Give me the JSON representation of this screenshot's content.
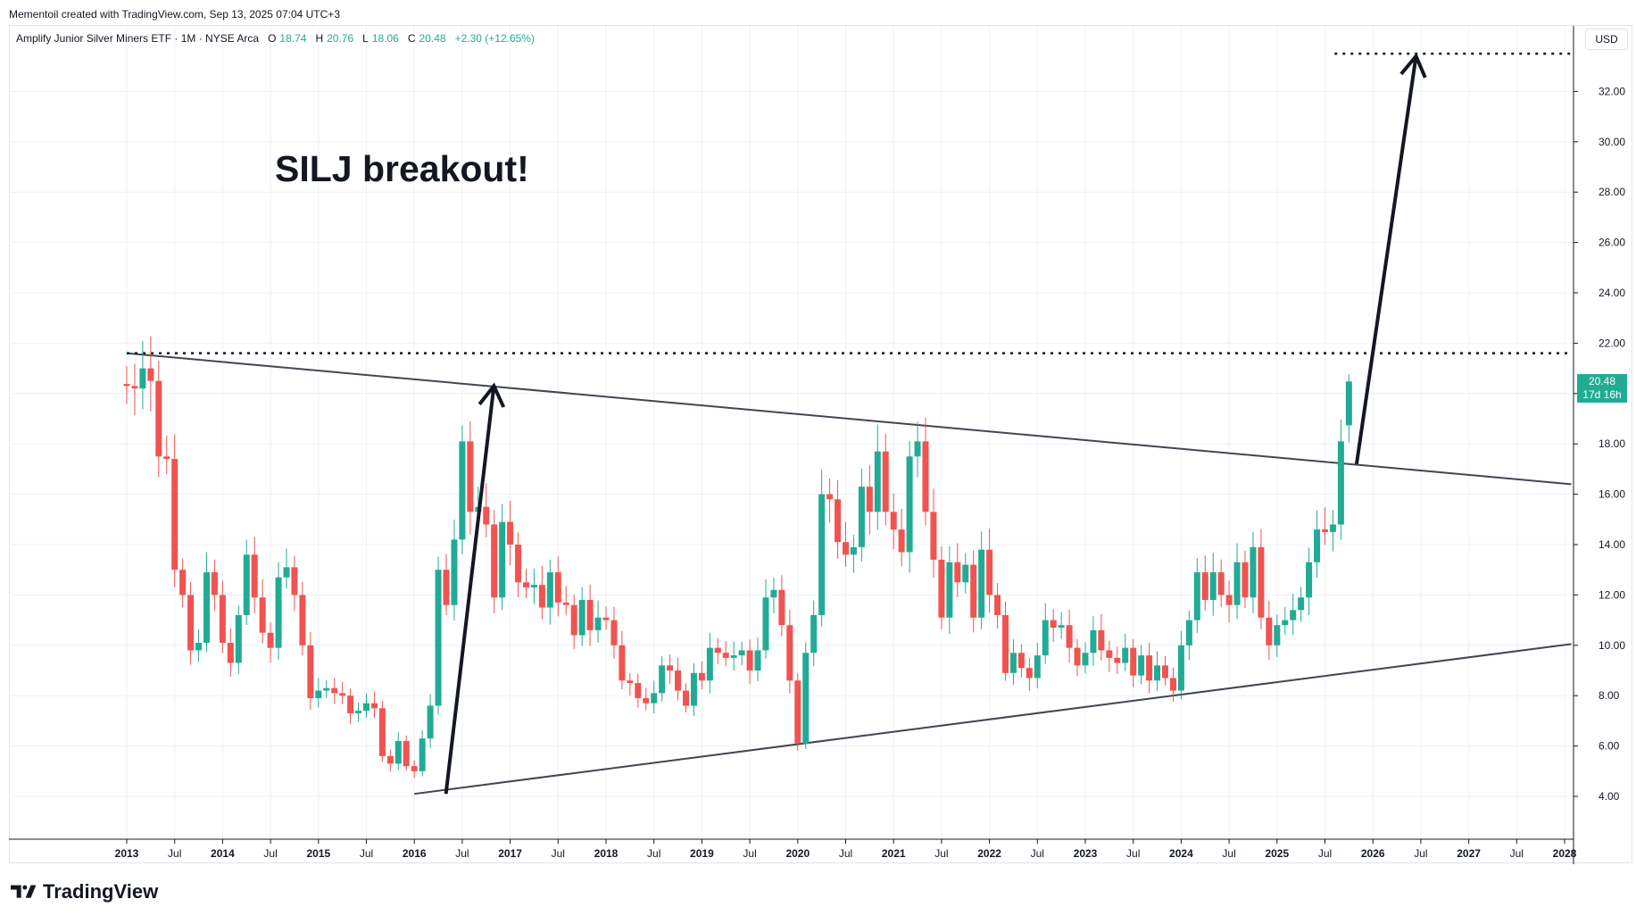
{
  "header": {
    "created_by": "Mementoil created with TradingView.com, Sep 13, 2025 07:04 UTC+3"
  },
  "legend": {
    "symbol": "Amplify Junior Silver Miners ETF · 1M · NYSE Arca",
    "open_label": "O",
    "open": "18.74",
    "high_label": "H",
    "high": "20.76",
    "low_label": "L",
    "low": "18.06",
    "close_label": "C",
    "close": "20.48",
    "change": "+2.30 (+12.65%)"
  },
  "currency": "USD",
  "annotation": "SILJ breakout!",
  "last_price": {
    "value": "20.48",
    "countdown": "17d 16h"
  },
  "brand": {
    "name": "TradingView"
  },
  "colors": {
    "up": "#22ab94",
    "down": "#f05350",
    "grid": "#eef1f6",
    "line": "#131722"
  },
  "chart_data": {
    "type": "candlestick",
    "interval": "1M",
    "ylim": [
      2.2,
      35.0
    ],
    "y_ticks": [
      "4.00",
      "6.00",
      "8.00",
      "10.00",
      "12.00",
      "14.00",
      "16.00",
      "18.00",
      "20.00",
      "22.00",
      "24.00",
      "26.00",
      "28.00",
      "30.00",
      "32.00"
    ],
    "x_ticks": [
      {
        "label": "2013",
        "t": 2013.0,
        "year": true
      },
      {
        "label": "Jul",
        "t": 2013.5
      },
      {
        "label": "2014",
        "t": 2014.0,
        "year": true
      },
      {
        "label": "Jul",
        "t": 2014.5
      },
      {
        "label": "2015",
        "t": 2015.0,
        "year": true
      },
      {
        "label": "Jul",
        "t": 2015.5
      },
      {
        "label": "2016",
        "t": 2016.0,
        "year": true
      },
      {
        "label": "Jul",
        "t": 2016.5
      },
      {
        "label": "2017",
        "t": 2017.0,
        "year": true
      },
      {
        "label": "Jul",
        "t": 2017.5
      },
      {
        "label": "2018",
        "t": 2018.0,
        "year": true
      },
      {
        "label": "Jul",
        "t": 2018.5
      },
      {
        "label": "2019",
        "t": 2019.0,
        "year": true
      },
      {
        "label": "Jul",
        "t": 2019.5
      },
      {
        "label": "2020",
        "t": 2020.0,
        "year": true
      },
      {
        "label": "Jul",
        "t": 2020.5
      },
      {
        "label": "2021",
        "t": 2021.0,
        "year": true
      },
      {
        "label": "Jul",
        "t": 2021.5
      },
      {
        "label": "2022",
        "t": 2022.0,
        "year": true
      },
      {
        "label": "Jul",
        "t": 2022.5
      },
      {
        "label": "2023",
        "t": 2023.0,
        "year": true
      },
      {
        "label": "Jul",
        "t": 2023.5
      },
      {
        "label": "2024",
        "t": 2024.0,
        "year": true
      },
      {
        "label": "Jul",
        "t": 2024.5
      },
      {
        "label": "2025",
        "t": 2025.0,
        "year": true
      },
      {
        "label": "Jul",
        "t": 2025.5
      },
      {
        "label": "2026",
        "t": 2026.0,
        "year": true
      },
      {
        "label": "Jul",
        "t": 2026.5
      },
      {
        "label": "2027",
        "t": 2027.0,
        "year": true
      },
      {
        "label": "Jul",
        "t": 2027.5
      },
      {
        "label": "2028",
        "t": 2028.0,
        "year": true
      }
    ],
    "closes": [
      20.3,
      20.2,
      21.0,
      20.5,
      17.5,
      17.4,
      13.0,
      12.0,
      9.8,
      10.1,
      12.9,
      12.0,
      10.1,
      9.3,
      11.2,
      13.6,
      11.9,
      10.5,
      9.9,
      12.7,
      13.1,
      12.0,
      10.0,
      7.9,
      8.2,
      8.3,
      8.1,
      8.0,
      7.3,
      7.4,
      7.7,
      7.5,
      5.6,
      5.3,
      6.2,
      5.2,
      5.0,
      6.3,
      7.6,
      13.0,
      11.6,
      14.2,
      18.1,
      15.3,
      15.5,
      14.8,
      11.9,
      14.9,
      14.0,
      12.5,
      12.3,
      12.4,
      11.5,
      12.9,
      11.7,
      11.6,
      10.4,
      11.8,
      10.6,
      11.1,
      11.0,
      10.0,
      8.6,
      8.5,
      7.9,
      7.7,
      8.1,
      9.2,
      9.0,
      8.2,
      7.6,
      8.9,
      8.6,
      9.9,
      9.7,
      9.5,
      9.6,
      9.8,
      9.0,
      9.8,
      11.9,
      12.2,
      10.8,
      8.6,
      6.1,
      9.7,
      11.2,
      16.0,
      15.8,
      14.1,
      13.6,
      13.9,
      16.3,
      15.3,
      17.7,
      15.3,
      14.6,
      13.7,
      17.5,
      18.1,
      15.3,
      13.4,
      11.1,
      13.3,
      12.5,
      13.2,
      11.1,
      13.8,
      12.0,
      11.2,
      8.9,
      9.7,
      9.1,
      8.7,
      9.6,
      11.0,
      10.7,
      10.8,
      9.9,
      9.2,
      9.7,
      10.6,
      9.8,
      9.5,
      9.3,
      9.9,
      8.8,
      9.6,
      8.6,
      9.2,
      8.7,
      8.2,
      10.0,
      11.0,
      12.9,
      11.8,
      12.9,
      12.0,
      11.6,
      13.3,
      11.9,
      13.9,
      11.1,
      10.0,
      10.8,
      11.0,
      11.4,
      11.9,
      13.3,
      14.6,
      14.5,
      14.8,
      18.1,
      20.48
    ]
  }
}
